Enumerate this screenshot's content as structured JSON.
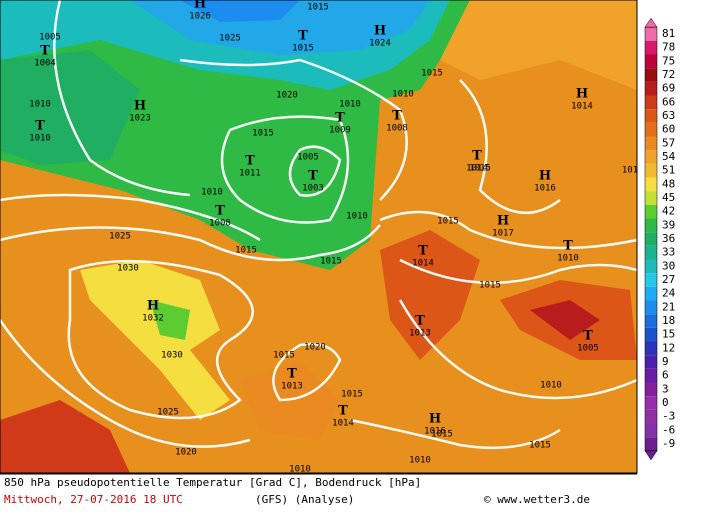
{
  "legend": {
    "ticks": [
      81,
      78,
      75,
      72,
      69,
      66,
      63,
      60,
      57,
      54,
      51,
      48,
      45,
      42,
      39,
      36,
      33,
      30,
      27,
      24,
      21,
      18,
      15,
      12,
      9,
      6,
      3,
      0,
      -3,
      -6,
      -9
    ],
    "colors": [
      "#f06aa8",
      "#d8186a",
      "#c0003a",
      "#9a0c10",
      "#b81c1c",
      "#d03a18",
      "#dc5618",
      "#e46e1c",
      "#ea8a20",
      "#f0a22a",
      "#f2ba30",
      "#f4de40",
      "#c4e032",
      "#5ccc30",
      "#2eba44",
      "#20ae62",
      "#1cb48e",
      "#1cbcbc",
      "#22c8e6",
      "#1eacf0",
      "#1c8cee",
      "#1c6ede",
      "#1c50cc",
      "#2c34bc",
      "#4a22ae",
      "#6a1ca2",
      "#82209e",
      "#9a2cae",
      "#9030a4",
      "#8432a8",
      "#6c2090"
    ]
  },
  "centers": [
    {
      "type": "H",
      "value": "1026"
    },
    {
      "type": "T",
      "value": "1015"
    },
    {
      "type": "H",
      "value": "1024"
    },
    {
      "type": "T",
      "value": "1004"
    },
    {
      "type": "H",
      "value": "1023"
    },
    {
      "type": "T",
      "value": "1010"
    },
    {
      "type": "T",
      "value": "1009"
    },
    {
      "type": "T",
      "value": "1008"
    },
    {
      "type": "T",
      "value": "1011"
    },
    {
      "type": "T",
      "value": "1003"
    },
    {
      "type": "T",
      "value": "1014"
    },
    {
      "type": "H",
      "value": "1016"
    },
    {
      "type": "T",
      "value": "1008"
    },
    {
      "type": "H",
      "value": "1017"
    },
    {
      "type": "T",
      "value": "1014"
    },
    {
      "type": "T",
      "value": "1010"
    },
    {
      "type": "H",
      "value": "1032"
    },
    {
      "type": "T",
      "value": "1013"
    },
    {
      "type": "T",
      "value": "1005"
    },
    {
      "type": "T",
      "value": "1013"
    },
    {
      "type": "T",
      "value": "1014"
    },
    {
      "type": "H",
      "value": "1016"
    },
    {
      "type": "H",
      "value": "1014"
    }
  ],
  "isobar_labels": [
    "1005",
    "1025",
    "1015",
    "1020",
    "1015",
    "1010",
    "1010",
    "1015",
    "1005",
    "1015",
    "1010",
    "1010",
    "1015",
    "1015",
    "1015",
    "1015",
    "1025",
    "1030",
    "1030",
    "1025",
    "1020",
    "1020",
    "1015",
    "1015",
    "1015",
    "1010",
    "1010",
    "1010",
    "1010",
    "1015",
    "101"
  ],
  "footer": {
    "title": "850 hPa pseudopotentielle Temperatur [Grad C], Bodendruck [hPa]",
    "date": "Mittwoch, 27-07-2016  18 UTC",
    "model": "(GFS)   (Analyse)",
    "credit": "© www.wetter3.de"
  }
}
